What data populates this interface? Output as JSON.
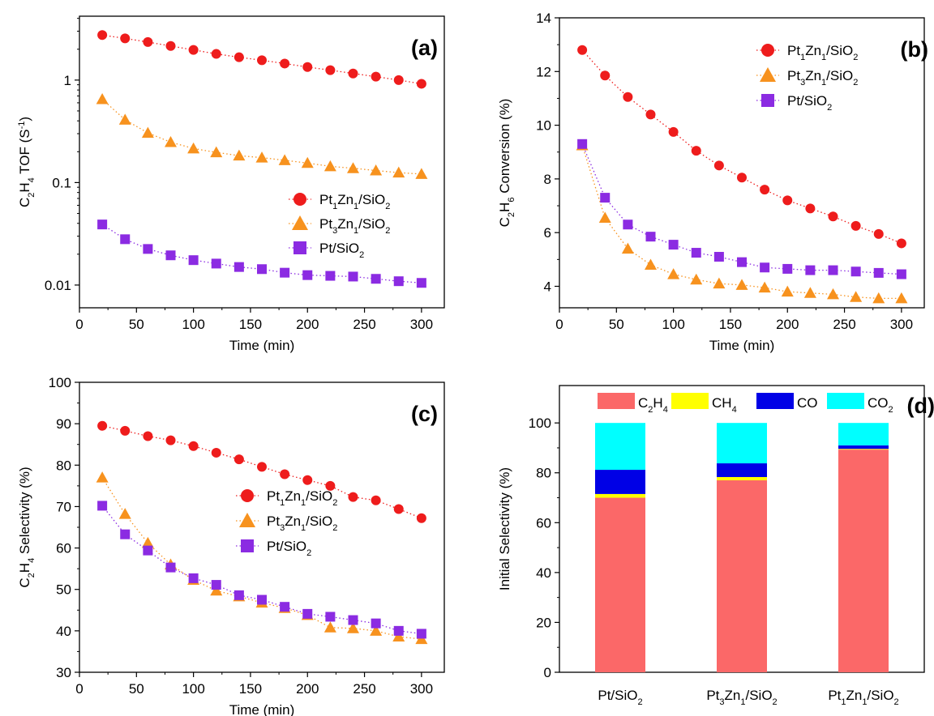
{
  "chart_data": [
    {
      "id": "a",
      "panel_label": "(a)",
      "type": "scatter",
      "xlabel": "Time (min)",
      "ylabel": {
        "base": "C",
        "sub1": "2",
        "mid": "H",
        "sub2": "4",
        "tail": " TOF (S",
        "sup": "-1",
        "end": ")"
      },
      "xlim": [
        0,
        320
      ],
      "ylim": [
        0.006,
        4.2
      ],
      "yscale": "log",
      "xticks": [
        0,
        50,
        100,
        150,
        200,
        250,
        300
      ],
      "yticks": [
        {
          "value": 1,
          "label": "1"
        },
        {
          "value": 0.1,
          "label": "0.1"
        },
        {
          "value": 0.01,
          "label": "0.01"
        }
      ],
      "legend_position": "center-right",
      "x": [
        20,
        40,
        60,
        80,
        100,
        120,
        140,
        160,
        180,
        200,
        220,
        240,
        260,
        280,
        300
      ],
      "series": [
        {
          "key": "pt1zn1",
          "values": [
            2.75,
            2.55,
            2.35,
            2.15,
            1.97,
            1.8,
            1.67,
            1.56,
            1.45,
            1.34,
            1.25,
            1.16,
            1.08,
            1.0,
            0.92
          ]
        },
        {
          "key": "pt3zn1",
          "values": [
            0.65,
            0.41,
            0.305,
            0.248,
            0.215,
            0.197,
            0.183,
            0.175,
            0.165,
            0.155,
            0.144,
            0.138,
            0.131,
            0.125,
            0.121
          ]
        },
        {
          "key": "pt",
          "values": [
            0.039,
            0.028,
            0.0225,
            0.0195,
            0.0175,
            0.0162,
            0.015,
            0.0143,
            0.0132,
            0.0125,
            0.0123,
            0.0121,
            0.0115,
            0.0109,
            0.0105
          ]
        }
      ]
    },
    {
      "id": "b",
      "panel_label": "(b)",
      "type": "scatter",
      "xlabel": "Time (min)",
      "ylabel": {
        "base": "C",
        "sub1": "2",
        "mid": "H",
        "sub2": "6",
        "tail": " Conversion (%)"
      },
      "xlim": [
        0,
        320
      ],
      "ylim": [
        3.2,
        14
      ],
      "xticks": [
        0,
        50,
        100,
        150,
        200,
        250,
        300
      ],
      "yticks": [
        4,
        6,
        8,
        10,
        12,
        14
      ],
      "legend_position": "top-right",
      "x": [
        20,
        40,
        60,
        80,
        100,
        120,
        140,
        160,
        180,
        200,
        220,
        240,
        260,
        280,
        300
      ],
      "series": [
        {
          "key": "pt1zn1",
          "values": [
            12.8,
            11.85,
            11.05,
            10.4,
            9.75,
            9.05,
            8.5,
            8.05,
            7.6,
            7.2,
            6.9,
            6.6,
            6.25,
            5.95,
            5.6
          ]
        },
        {
          "key": "pt3zn1",
          "values": [
            9.25,
            6.55,
            5.4,
            4.8,
            4.45,
            4.25,
            4.1,
            4.05,
            3.95,
            3.8,
            3.75,
            3.7,
            3.6,
            3.55,
            3.55
          ]
        },
        {
          "key": "pt",
          "values": [
            9.3,
            7.3,
            6.3,
            5.85,
            5.55,
            5.25,
            5.1,
            4.9,
            4.7,
            4.65,
            4.6,
            4.6,
            4.55,
            4.5,
            4.45
          ]
        }
      ]
    },
    {
      "id": "c",
      "panel_label": "(c)",
      "type": "scatter",
      "xlabel": "Time (min)",
      "ylabel": {
        "base": "C",
        "sub1": "2",
        "mid": "H",
        "sub2": "4",
        "tail": " Selectivity (%)"
      },
      "xlim": [
        0,
        320
      ],
      "ylim": [
        30,
        100
      ],
      "xticks": [
        0,
        50,
        100,
        150,
        200,
        250,
        300
      ],
      "yticks": [
        30,
        40,
        50,
        60,
        70,
        80,
        90,
        100
      ],
      "legend_position": "center-right",
      "x": [
        20,
        40,
        60,
        80,
        100,
        120,
        140,
        160,
        180,
        200,
        220,
        240,
        260,
        280,
        300
      ],
      "series": [
        {
          "key": "pt1zn1",
          "values": [
            89.5,
            88.3,
            87.0,
            86.0,
            84.6,
            83.0,
            81.4,
            79.6,
            77.8,
            76.4,
            75.0,
            72.3,
            71.5,
            69.4,
            67.2
          ]
        },
        {
          "key": "pt3zn1",
          "values": [
            77.0,
            68.2,
            61.2,
            56.0,
            52.3,
            49.7,
            48.3,
            46.8,
            45.5,
            43.8,
            40.8,
            40.6,
            40.0,
            38.6,
            38.0
          ]
        },
        {
          "key": "pt",
          "values": [
            70.2,
            63.3,
            59.4,
            55.3,
            52.7,
            51.1,
            48.6,
            47.5,
            45.8,
            44.1,
            43.4,
            42.6,
            41.8,
            40.0,
            39.3
          ]
        }
      ]
    },
    {
      "id": "d",
      "panel_label": "(d)",
      "type": "bar",
      "stacked": true,
      "ylabel": "Initial Selectivity (%)",
      "ylim": [
        0,
        115
      ],
      "yticks": [
        0,
        20,
        40,
        60,
        80,
        100
      ],
      "legend_position": "top",
      "categories": [
        {
          "base": "Pt/SiO",
          "sub": "2"
        },
        {
          "pre": "Pt",
          "s1": "3",
          "mid": "Zn",
          "s2": "1",
          "post": "/SiO",
          "s3": "2"
        },
        {
          "pre": "Pt",
          "s1": "1",
          "mid": "Zn",
          "s2": "1",
          "post": "/SiO",
          "s3": "2"
        }
      ],
      "series": [
        {
          "key": "c2h4",
          "values": [
            70.0,
            77.0,
            89.3
          ]
        },
        {
          "key": "ch4",
          "values": [
            1.5,
            1.3,
            0.3
          ]
        },
        {
          "key": "co",
          "values": [
            9.7,
            5.5,
            1.4
          ]
        },
        {
          "key": "co2",
          "values": [
            18.8,
            16.2,
            9.0
          ]
        }
      ]
    }
  ],
  "legend_labels": {
    "pt1zn1": {
      "pre": "Pt",
      "s1": "1",
      "mid": "Zn",
      "s2": "1",
      "post": "/SiO",
      "s3": "2"
    },
    "pt3zn1": {
      "pre": "Pt",
      "s1": "3",
      "mid": "Zn",
      "s2": "1",
      "post": "/SiO",
      "s3": "2"
    },
    "pt": {
      "pre": "Pt/SiO",
      "s1": "2"
    },
    "c2h4": {
      "pre": "C",
      "s1": "2",
      "mid": "H",
      "s2": "4"
    },
    "ch4": {
      "pre": "CH",
      "s1": "4"
    },
    "co": {
      "pre": "CO"
    },
    "co2": {
      "pre": "CO",
      "s1": "2"
    }
  },
  "colors": {
    "pt1zn1": "#ee1c1c",
    "pt3zn1": "#f7921e",
    "pt": "#8b2be2",
    "c2h4": "#fb6868",
    "ch4": "#ffff00",
    "co": "#0000e6",
    "co2": "#00ffff"
  },
  "markers": {
    "pt1zn1": "circle",
    "pt3zn1": "triangle",
    "pt": "square"
  }
}
